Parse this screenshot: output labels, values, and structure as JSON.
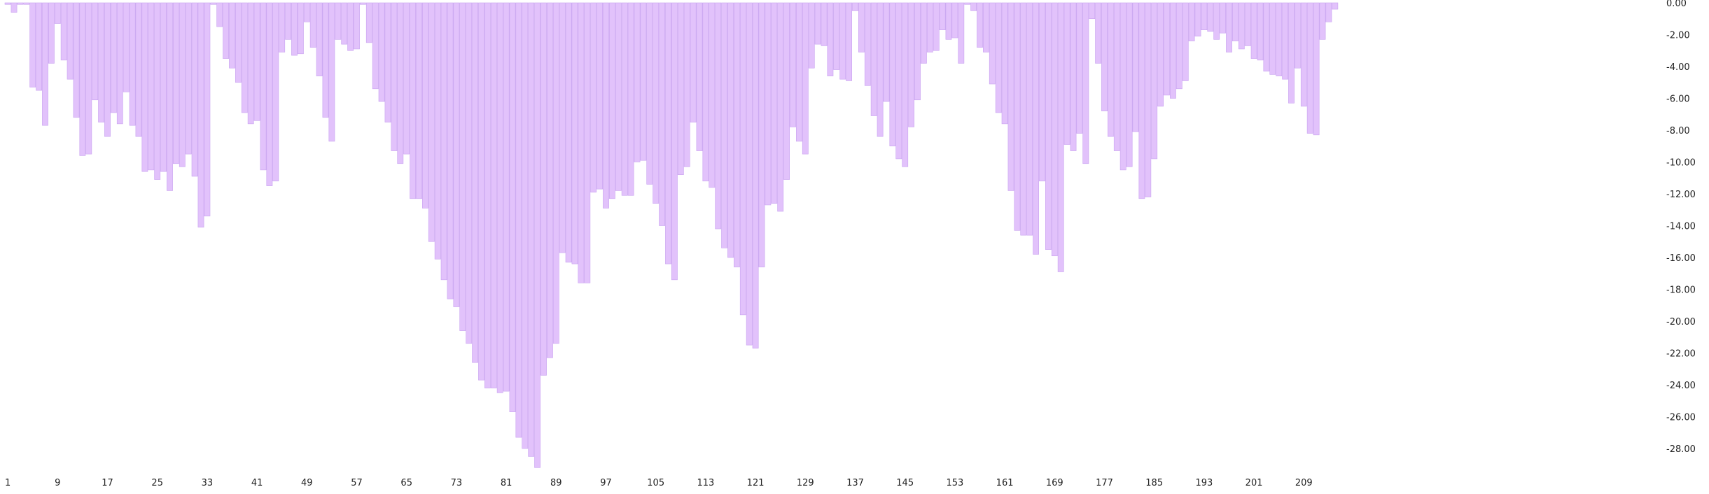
{
  "chart_data": {
    "type": "bar",
    "title": "",
    "xlabel": "",
    "ylabel": "",
    "orientation": "negative-down-from-top",
    "y_axis_position": "right",
    "grid": false,
    "legend": "none",
    "colors": {
      "bar_fill": "#e2c2fb",
      "bar_stroke": "#c8a2f0",
      "axis_text": "#222222",
      "background": "#ffffff"
    },
    "ylim": [
      -29.4,
      0
    ],
    "x_tick_labels": [
      "1",
      "9",
      "17",
      "25",
      "33",
      "41",
      "49",
      "57",
      "65",
      "73",
      "81",
      "89",
      "97",
      "105",
      "113",
      "121",
      "129",
      "137",
      "145",
      "153",
      "161",
      "169",
      "177",
      "185",
      "193",
      "201",
      "209"
    ],
    "y_tick_labels": [
      "0.00",
      "-2.00",
      "-4.00",
      "-6.00",
      "-8.00",
      "-10.00",
      "-12.00",
      "-14.00",
      "-16.00",
      "-18.00",
      "-20.00",
      "-22.00",
      "-24.00",
      "-26.00",
      "-28.00"
    ],
    "y_tick_values": [
      0,
      -2,
      -4,
      -6,
      -8,
      -10,
      -12,
      -14,
      -16,
      -18,
      -20,
      -22,
      -24,
      -26,
      -28
    ],
    "categories_start": 1,
    "values": [
      -0.1,
      -0.6,
      -0.1,
      -0.1,
      -5.3,
      -5.5,
      -7.7,
      -3.8,
      -1.3,
      -3.6,
      -4.8,
      -7.2,
      -9.6,
      -9.5,
      -6.1,
      -7.5,
      -8.4,
      -6.9,
      -7.6,
      -5.6,
      -7.7,
      -8.4,
      -10.6,
      -10.5,
      -11.1,
      -10.6,
      -11.8,
      -10.1,
      -10.3,
      -9.5,
      -10.9,
      -14.1,
      -13.4,
      -0.1,
      -1.5,
      -3.5,
      -4.1,
      -5.0,
      -6.9,
      -7.6,
      -7.4,
      -10.5,
      -11.5,
      -11.2,
      -3.1,
      -2.3,
      -3.3,
      -3.2,
      -1.2,
      -2.8,
      -4.6,
      -7.2,
      -8.7,
      -2.3,
      -2.6,
      -3.0,
      -2.9,
      -0.1,
      -2.5,
      -5.4,
      -6.2,
      -7.5,
      -9.3,
      -10.1,
      -9.5,
      -12.3,
      -12.3,
      -12.9,
      -15.0,
      -16.1,
      -17.4,
      -18.6,
      -19.1,
      -20.6,
      -21.4,
      -22.6,
      -23.7,
      -24.2,
      -24.2,
      -24.5,
      -24.4,
      -25.7,
      -27.3,
      -28.0,
      -28.5,
      -29.2,
      -23.4,
      -22.3,
      -21.4,
      -15.7,
      -16.3,
      -16.4,
      -17.6,
      -17.6,
      -11.9,
      -11.7,
      -12.9,
      -12.3,
      -11.8,
      -12.1,
      -12.1,
      -10.0,
      -9.9,
      -11.4,
      -12.6,
      -14.0,
      -16.4,
      -17.4,
      -10.8,
      -10.3,
      -7.5,
      -9.3,
      -11.2,
      -11.6,
      -14.2,
      -15.4,
      -16.0,
      -16.6,
      -19.6,
      -21.5,
      -21.7,
      -16.6,
      -12.7,
      -12.6,
      -13.1,
      -11.1,
      -7.8,
      -8.7,
      -9.5,
      -4.1,
      -2.6,
      -2.7,
      -4.6,
      -4.2,
      -4.8,
      -4.9,
      -0.5,
      -3.1,
      -5.2,
      -7.1,
      -8.4,
      -6.2,
      -9.0,
      -9.8,
      -10.3,
      -7.8,
      -6.1,
      -3.8,
      -3.1,
      -3.0,
      -1.7,
      -2.3,
      -2.2,
      -3.8,
      -0.1,
      -0.5,
      -2.8,
      -3.1,
      -5.1,
      -6.9,
      -7.6,
      -11.8,
      -14.3,
      -14.6,
      -14.6,
      -15.8,
      -11.2,
      -15.5,
      -15.9,
      -16.9,
      -8.9,
      -9.3,
      -8.2,
      -10.1,
      -1.0,
      -3.8,
      -6.8,
      -8.4,
      -9.3,
      -10.5,
      -10.3,
      -8.1,
      -12.3,
      -12.2,
      -9.8,
      -6.5,
      -5.8,
      -6.0,
      -5.4,
      -4.9,
      -2.4,
      -2.1,
      -1.7,
      -1.8,
      -2.3,
      -1.9,
      -3.1,
      -2.4,
      -2.9,
      -2.7,
      -3.5,
      -3.6,
      -4.3,
      -4.5,
      -4.6,
      -4.8,
      -6.3,
      -4.1,
      -6.5,
      -8.2,
      -8.3,
      -2.3,
      -1.2,
      -0.4
    ]
  }
}
